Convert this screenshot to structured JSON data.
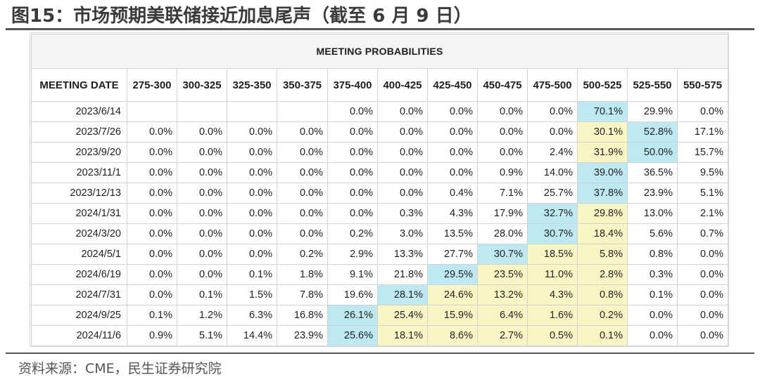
{
  "figure": {
    "title": "图15：市场预期美联储接近加息尾声（截至 6 月 9 日）",
    "source": "资料来源：CME，民生证券研究院"
  },
  "table": {
    "caption": "MEETING PROBABILITIES",
    "date_header": "MEETING DATE",
    "columns": [
      "275-300",
      "300-325",
      "325-350",
      "350-375",
      "375-400",
      "400-425",
      "425-450",
      "450-475",
      "475-500",
      "500-525",
      "525-550",
      "550-575"
    ],
    "rows": [
      {
        "date": "2023/6/14",
        "values": [
          "",
          "",
          "",
          "",
          "0.0%",
          "0.0%",
          "0.0%",
          "0.0%",
          "0.0%",
          "70.1%",
          "29.9%",
          "0.0%"
        ],
        "highlights": {
          "9": "blue"
        }
      },
      {
        "date": "2023/7/26",
        "values": [
          "0.0%",
          "0.0%",
          "0.0%",
          "0.0%",
          "0.0%",
          "0.0%",
          "0.0%",
          "0.0%",
          "0.0%",
          "30.1%",
          "52.8%",
          "17.1%"
        ],
        "highlights": {
          "9": "yellow",
          "10": "blue"
        }
      },
      {
        "date": "2023/9/20",
        "values": [
          "0.0%",
          "0.0%",
          "0.0%",
          "0.0%",
          "0.0%",
          "0.0%",
          "0.0%",
          "0.0%",
          "2.4%",
          "31.9%",
          "50.0%",
          "15.7%"
        ],
        "highlights": {
          "9": "yellow",
          "10": "blue"
        }
      },
      {
        "date": "2023/11/1",
        "values": [
          "0.0%",
          "0.0%",
          "0.0%",
          "0.0%",
          "0.0%",
          "0.0%",
          "0.0%",
          "0.9%",
          "14.0%",
          "39.0%",
          "36.5%",
          "9.5%"
        ],
        "highlights": {
          "9": "blue"
        }
      },
      {
        "date": "2023/12/13",
        "values": [
          "0.0%",
          "0.0%",
          "0.0%",
          "0.0%",
          "0.0%",
          "0.0%",
          "0.4%",
          "7.1%",
          "25.7%",
          "37.8%",
          "23.9%",
          "5.1%"
        ],
        "highlights": {
          "9": "blue"
        }
      },
      {
        "date": "2024/1/31",
        "values": [
          "0.0%",
          "0.0%",
          "0.0%",
          "0.0%",
          "0.0%",
          "0.3%",
          "4.3%",
          "17.9%",
          "32.7%",
          "29.8%",
          "13.0%",
          "2.1%"
        ],
        "highlights": {
          "8": "blue",
          "9": "yellow"
        }
      },
      {
        "date": "2024/3/20",
        "values": [
          "0.0%",
          "0.0%",
          "0.0%",
          "0.0%",
          "0.2%",
          "3.0%",
          "13.5%",
          "28.0%",
          "30.7%",
          "18.4%",
          "5.6%",
          "0.7%"
        ],
        "highlights": {
          "8": "blue",
          "9": "yellow"
        }
      },
      {
        "date": "2024/5/1",
        "values": [
          "0.0%",
          "0.0%",
          "0.0%",
          "0.2%",
          "2.9%",
          "13.3%",
          "27.7%",
          "30.7%",
          "18.5%",
          "5.8%",
          "0.8%",
          "0.0%"
        ],
        "highlights": {
          "7": "blue",
          "8": "yellow",
          "9": "yellow"
        }
      },
      {
        "date": "2024/6/19",
        "values": [
          "0.0%",
          "0.0%",
          "0.1%",
          "1.8%",
          "9.1%",
          "21.8%",
          "29.5%",
          "23.5%",
          "11.0%",
          "2.8%",
          "0.3%",
          "0.0%"
        ],
        "highlights": {
          "6": "blue",
          "7": "yellow",
          "8": "yellow",
          "9": "yellow"
        }
      },
      {
        "date": "2024/7/31",
        "values": [
          "0.0%",
          "0.1%",
          "1.5%",
          "7.8%",
          "19.6%",
          "28.1%",
          "24.6%",
          "13.2%",
          "4.3%",
          "0.8%",
          "0.1%",
          "0.0%"
        ],
        "highlights": {
          "5": "blue",
          "6": "yellow",
          "7": "yellow",
          "8": "yellow",
          "9": "yellow"
        }
      },
      {
        "date": "2024/9/25",
        "values": [
          "0.1%",
          "1.2%",
          "6.3%",
          "16.8%",
          "26.1%",
          "25.4%",
          "15.9%",
          "6.4%",
          "1.6%",
          "0.2%",
          "0.0%",
          "0.0%"
        ],
        "highlights": {
          "4": "blue",
          "5": "yellow",
          "6": "yellow",
          "7": "yellow",
          "8": "yellow",
          "9": "yellow"
        }
      },
      {
        "date": "2024/11/6",
        "values": [
          "0.9%",
          "5.1%",
          "14.4%",
          "23.9%",
          "25.6%",
          "18.1%",
          "8.6%",
          "2.7%",
          "0.5%",
          "0.1%",
          "0.0%",
          "0.0%"
        ],
        "highlights": {
          "4": "blue",
          "5": "yellow",
          "6": "yellow",
          "7": "yellow",
          "8": "yellow",
          "9": "yellow"
        }
      }
    ]
  },
  "colors": {
    "highlight_blue": "#bfe9f2",
    "highlight_yellow": "#f9f6c6"
  }
}
